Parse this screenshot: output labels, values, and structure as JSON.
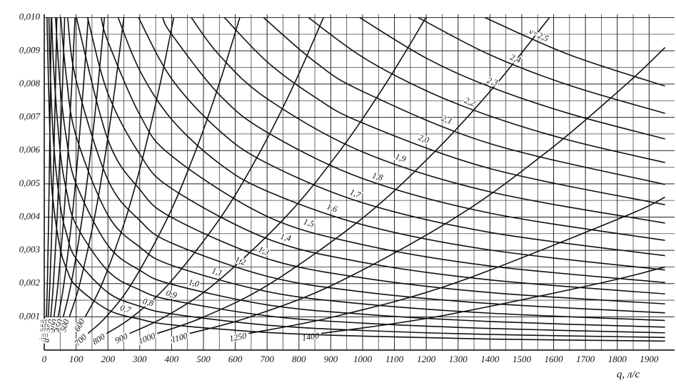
{
  "chart_data": {
    "type": "line",
    "x_label": "q, л/с",
    "color": "#111111",
    "grid": true,
    "minor_grid": true,
    "xlim": [
      0,
      1980
    ],
    "ylim": [
      0,
      0.0101
    ],
    "xticks": [
      0,
      100,
      200,
      300,
      400,
      500,
      600,
      700,
      800,
      900,
      1000,
      1100,
      1200,
      1300,
      1400,
      1500,
      1600,
      1700,
      1800,
      1900
    ],
    "yticks": [
      {
        "value": 0.001,
        "label": "0,001"
      },
      {
        "value": 0.002,
        "label": "0,002"
      },
      {
        "value": 0.003,
        "label": "0,003"
      },
      {
        "value": 0.004,
        "label": "0,004"
      },
      {
        "value": 0.005,
        "label": "0,005"
      },
      {
        "value": 0.006,
        "label": "0,006"
      },
      {
        "value": 0.007,
        "label": "0,007"
      },
      {
        "value": 0.008,
        "label": "0,008"
      },
      {
        "value": 0.009,
        "label": "0,009"
      },
      {
        "value": 0.01,
        "label": "0,010"
      }
    ],
    "series": [
      {
        "name": "d=200",
        "x": [
          6.9,
          9.8,
          13.8,
          16.9,
          19.5,
          21.8
        ],
        "values": [
          0.001,
          0.002,
          0.004,
          0.006,
          0.008,
          0.01
        ]
      },
      {
        "name": "d=250",
        "x": [
          12.5,
          17.7,
          25,
          30.6,
          35.4,
          39.5
        ],
        "values": [
          0.001,
          0.002,
          0.004,
          0.006,
          0.008,
          0.01
        ]
      },
      {
        "name": "d=300",
        "x": [
          20.3,
          28.7,
          40.6,
          49.7,
          57.4,
          64.1
        ],
        "values": [
          0.001,
          0.002,
          0.004,
          0.006,
          0.008,
          0.01
        ]
      },
      {
        "name": "350",
        "x": [
          30.6,
          43.2,
          61.2,
          74.9,
          86.5,
          96.7
        ],
        "values": [
          0.001,
          0.002,
          0.004,
          0.006,
          0.008,
          0.01
        ]
      },
      {
        "name": "400",
        "x": [
          43.7,
          61.8,
          87.4,
          107,
          123.5,
          138.1
        ],
        "values": [
          0.001,
          0.002,
          0.004,
          0.006,
          0.008,
          0.01
        ]
      },
      {
        "name": "450",
        "x": [
          59.8,
          84.5,
          119.6,
          146.4,
          169.1,
          189
        ],
        "values": [
          0.001,
          0.002,
          0.004,
          0.006,
          0.008,
          0.01
        ]
      },
      {
        "name": "500",
        "x": [
          79.1,
          111.8,
          158.1,
          193.7,
          223.6,
          250
        ],
        "values": [
          0.001,
          0.002,
          0.004,
          0.006,
          0.008,
          0.01
        ]
      },
      {
        "name": "600",
        "x": [
          128.6,
          181.9,
          257.3,
          315.1,
          363.9,
          406.8
        ],
        "values": [
          0.001,
          0.002,
          0.004,
          0.006,
          0.008,
          0.01
        ]
      },
      {
        "name": "700",
        "x": [
          137.3,
          194.2,
          274.7,
          388.5,
          475.8,
          549.4,
          614.3
        ],
        "values": [
          0.0005,
          0.001,
          0.002,
          0.004,
          0.006,
          0.008,
          0.01
        ]
      },
      {
        "name": "800",
        "x": [
          196,
          277,
          392,
          555,
          680,
          785,
          877
        ],
        "values": [
          0.0005,
          0.001,
          0.002,
          0.004,
          0.006,
          0.008,
          0.01
        ]
      },
      {
        "name": "900",
        "x": [
          268,
          379,
          536,
          758,
          929,
          1072,
          1199
        ],
        "values": [
          0.0005,
          0.001,
          0.002,
          0.004,
          0.006,
          0.008,
          0.01
        ]
      },
      {
        "name": "1000",
        "x": [
          355,
          502,
          710,
          1004,
          1230,
          1420,
          1587
        ],
        "values": [
          0.0005,
          0.001,
          0.002,
          0.004,
          0.006,
          0.008,
          0.01
        ]
      },
      {
        "name": "1100",
        "x": [
          457,
          647,
          915,
          1294,
          1584,
          1829,
          1950
        ],
        "values": [
          0.0005,
          0.001,
          0.002,
          0.004,
          0.006,
          0.008,
          0.0091
        ]
      },
      {
        "name": "1250",
        "x": [
          642,
          909,
          1285,
          1818,
          1950
        ],
        "values": [
          0.0005,
          0.001,
          0.002,
          0.004,
          0.0046
        ]
      },
      {
        "name": "1400",
        "x": [
          870,
          1230,
          1740,
          1950
        ],
        "values": [
          0.0005,
          0.001,
          0.002,
          0.0025
        ]
      },
      {
        "name": "0,7",
        "x": [
          8.5,
          20,
          30,
          50,
          70,
          100,
          200,
          300,
          400,
          700,
          1000,
          1400,
          1950
        ],
        "values": [
          0.01,
          0.00565,
          0.0043,
          0.00306,
          0.00245,
          0.00193,
          0.00121,
          0.00093,
          0.00076,
          0.00053,
          0.00042,
          0.00033,
          0.00027
        ]
      },
      {
        "name": "0,8",
        "x": [
          14.5,
          20,
          30,
          50,
          70,
          100,
          200,
          300,
          400,
          700,
          1000,
          1400,
          1950
        ],
        "values": [
          0.01,
          0.00807,
          0.00615,
          0.00438,
          0.0035,
          0.00275,
          0.00173,
          0.00132,
          0.00109,
          0.00075,
          0.00059,
          0.00047,
          0.00038
        ]
      },
      {
        "name": "0,9",
        "x": [
          23.2,
          30,
          50,
          70,
          100,
          200,
          300,
          400,
          700,
          1000,
          1400,
          1950
        ],
        "values": [
          0.01,
          0.00842,
          0.00599,
          0.00479,
          0.00377,
          0.00238,
          0.00181,
          0.0015,
          0.00103,
          0.00081,
          0.00065,
          0.00052
        ]
      },
      {
        "name": "1,0",
        "x": [
          35.4,
          50,
          70,
          100,
          200,
          300,
          400,
          700,
          1000,
          1400,
          1950
        ],
        "values": [
          0.01,
          0.00793,
          0.00634,
          0.005,
          0.00315,
          0.0024,
          0.00198,
          0.00136,
          0.00108,
          0.00086,
          0.00069
        ]
      },
      {
        "name": "1,1",
        "x": [
          51.8,
          70,
          100,
          200,
          300,
          400,
          700,
          1000,
          1400,
          1950
        ],
        "values": [
          0.01,
          0.00817,
          0.00644,
          0.00406,
          0.0031,
          0.00255,
          0.00176,
          0.00139,
          0.00111,
          0.00089
        ]
      },
      {
        "name": "1,2",
        "x": [
          73.4,
          100,
          200,
          300,
          400,
          700,
          1000,
          1400,
          1950
        ],
        "values": [
          0.01,
          0.00812,
          0.00512,
          0.0039,
          0.00322,
          0.00222,
          0.00175,
          0.0014,
          0.00112
        ]
      },
      {
        "name": "1,3",
        "x": [
          101,
          200,
          300,
          400,
          700,
          1000,
          1400,
          1950
        ],
        "values": [
          0.01,
          0.00633,
          0.00483,
          0.00399,
          0.00275,
          0.00217,
          0.00173,
          0.00139
        ]
      },
      {
        "name": "1,4",
        "x": [
          136,
          200,
          300,
          400,
          700,
          1000,
          1400,
          1950
        ],
        "values": [
          0.01,
          0.00772,
          0.00589,
          0.00486,
          0.00335,
          0.00264,
          0.00211,
          0.00169
        ]
      },
      {
        "name": "1,5",
        "x": [
          179,
          200,
          300,
          400,
          700,
          1000,
          1400,
          1950
        ],
        "values": [
          0.01,
          0.00928,
          0.00708,
          0.00584,
          0.00402,
          0.00317,
          0.00253,
          0.00203
        ]
      },
      {
        "name": "1,6",
        "x": [
          232,
          300,
          400,
          550,
          700,
          1000,
          1400,
          1950
        ],
        "values": [
          0.01,
          0.00841,
          0.00694,
          0.00561,
          0.00478,
          0.00377,
          0.00301,
          0.00241
        ]
      },
      {
        "name": "1,7",
        "x": [
          296,
          400,
          550,
          700,
          1000,
          1400,
          1950
        ],
        "values": [
          0.01,
          0.00816,
          0.0066,
          0.00562,
          0.00443,
          0.00354,
          0.00284
        ]
      },
      {
        "name": "1,8",
        "x": [
          372,
          400,
          550,
          700,
          1000,
          1400,
          1950
        ],
        "values": [
          0.01,
          0.0095,
          0.00768,
          0.00655,
          0.00516,
          0.00412,
          0.0033
        ]
      },
      {
        "name": "1,9",
        "x": [
          462,
          550,
          700,
          1000,
          1400,
          1950
        ],
        "values": [
          0.01,
          0.00887,
          0.00756,
          0.00596,
          0.00476,
          0.00382
        ]
      },
      {
        "name": "2,0",
        "x": [
          566,
          700,
          850,
          1000,
          1400,
          1950
        ],
        "values": [
          0.01,
          0.00867,
          0.00761,
          0.00683,
          0.00546,
          0.00437
        ]
      },
      {
        "name": "2,1",
        "x": [
          689,
          850,
          1000,
          1400,
          1950
        ],
        "values": [
          0.01,
          0.00867,
          0.00778,
          0.00621,
          0.00498
        ]
      },
      {
        "name": "2,2",
        "x": [
          830,
          1000,
          1200,
          1400,
          1650,
          1950
        ],
        "values": [
          0.01,
          0.00881,
          0.0078,
          0.00704,
          0.00631,
          0.00564
        ]
      },
      {
        "name": "2,3",
        "x": [
          991,
          1200,
          1400,
          1650,
          1950
        ],
        "values": [
          0.01,
          0.00878,
          0.00792,
          0.00711,
          0.00635
        ]
      },
      {
        "name": "2,4",
        "x": [
          1175,
          1400,
          1650,
          1950
        ],
        "values": [
          0.01,
          0.00888,
          0.00796,
          0.00712
        ]
      },
      {
        "name": "v=2,5",
        "x": [
          1384,
          1650,
          1950
        ],
        "values": [
          0.01,
          0.00888,
          0.00794
        ]
      }
    ]
  }
}
